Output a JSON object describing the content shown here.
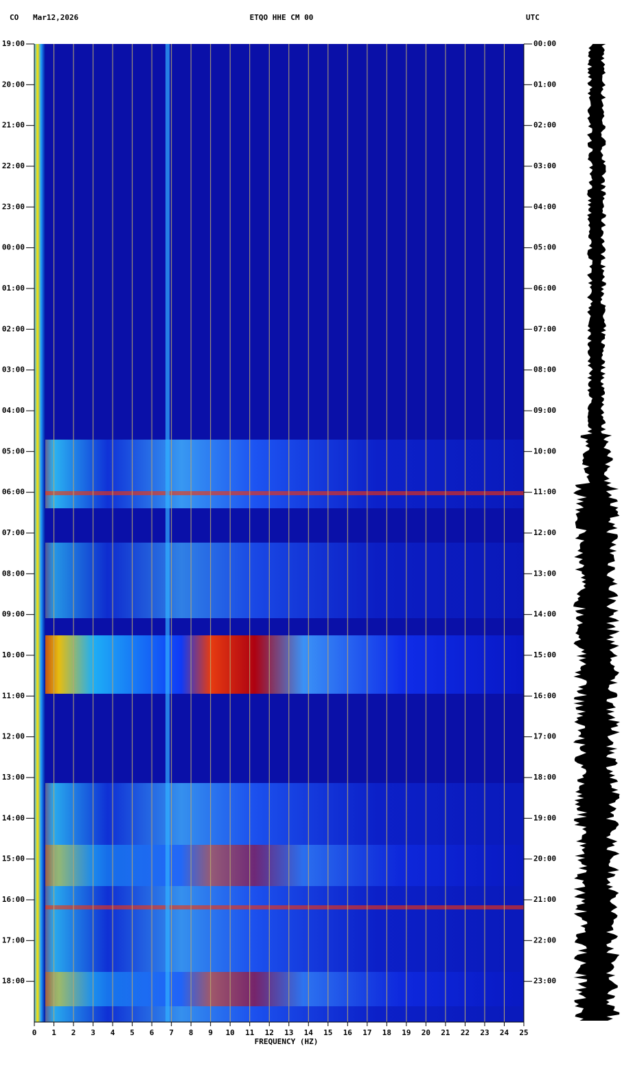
{
  "chart_data": {
    "type": "spectrogram",
    "network": "CO",
    "date": "Mar12,2026",
    "title": "ETQO HHE CM 00",
    "timezone_right": "UTC",
    "xlabel": "FREQUENCY (HZ)",
    "xlim": [
      0,
      25
    ],
    "xticks": [
      0,
      1,
      2,
      3,
      4,
      5,
      6,
      7,
      8,
      9,
      10,
      11,
      12,
      13,
      14,
      15,
      16,
      17,
      18,
      19,
      20,
      21,
      22,
      23,
      24,
      25
    ],
    "ylim": [
      0,
      24
    ],
    "yticks": [
      {
        "value": 0,
        "label": "19:00"
      },
      {
        "value": 1,
        "label": "20:00"
      },
      {
        "value": 2,
        "label": "21:00"
      },
      {
        "value": 3,
        "label": "22:00"
      },
      {
        "value": 4,
        "label": "23:00"
      },
      {
        "value": 5,
        "label": "00:00"
      },
      {
        "value": 6,
        "label": "01:00"
      },
      {
        "value": 7,
        "label": "02:00"
      },
      {
        "value": 8,
        "label": "03:00"
      },
      {
        "value": 9,
        "label": "04:00"
      },
      {
        "value": 10,
        "label": "05:00"
      },
      {
        "value": 11,
        "label": "06:00"
      },
      {
        "value": 12,
        "label": "07:00"
      },
      {
        "value": 13,
        "label": "08:00"
      },
      {
        "value": 14,
        "label": "09:00"
      },
      {
        "value": 15,
        "label": "10:00"
      },
      {
        "value": 16,
        "label": "11:00"
      },
      {
        "value": 17,
        "label": "12:00"
      },
      {
        "value": 18,
        "label": "13:00"
      },
      {
        "value": 19,
        "label": "14:00"
      },
      {
        "value": 20,
        "label": "15:00"
      },
      {
        "value": 21,
        "label": "16:00"
      },
      {
        "value": 22,
        "label": "17:00"
      },
      {
        "value": 23,
        "label": "18:00"
      }
    ],
    "y2lim": [
      0,
      24
    ],
    "y2ticks": [
      {
        "value": 0,
        "label": "00:00"
      },
      {
        "value": 1,
        "label": "01:00"
      },
      {
        "value": 2,
        "label": "02:00"
      },
      {
        "value": 3,
        "label": "03:00"
      },
      {
        "value": 4,
        "label": "04:00"
      },
      {
        "value": 5,
        "label": "05:00"
      },
      {
        "value": 6,
        "label": "06:00"
      },
      {
        "value": 7,
        "label": "07:00"
      },
      {
        "value": 8,
        "label": "08:00"
      },
      {
        "value": 9,
        "label": "09:00"
      },
      {
        "value": 10,
        "label": "10:00"
      },
      {
        "value": 11,
        "label": "11:00"
      },
      {
        "value": 12,
        "label": "12:00"
      },
      {
        "value": 13,
        "label": "13:00"
      },
      {
        "value": 14,
        "label": "14:00"
      },
      {
        "value": 15,
        "label": "15:00"
      },
      {
        "value": 16,
        "label": "16:00"
      },
      {
        "value": 17,
        "label": "17:00"
      },
      {
        "value": 18,
        "label": "18:00"
      },
      {
        "value": 19,
        "label": "19:00"
      },
      {
        "value": 20,
        "label": "20:00"
      },
      {
        "value": 21,
        "label": "21:00"
      },
      {
        "value": 22,
        "label": "22:00"
      },
      {
        "value": 23,
        "label": "23:00"
      }
    ],
    "grid": true
  }
}
